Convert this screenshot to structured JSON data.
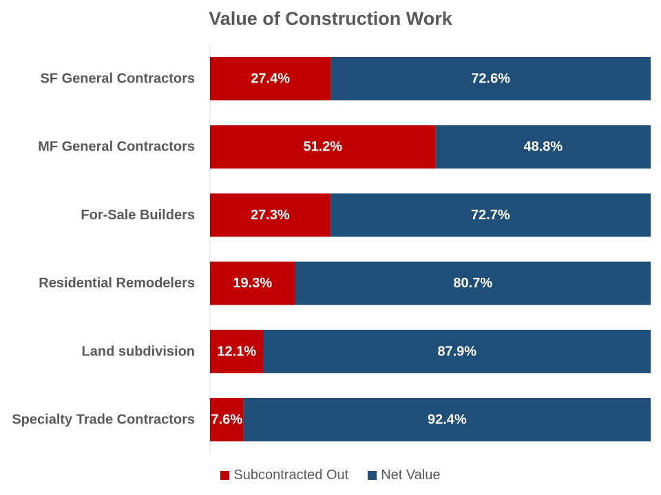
{
  "chart_data": {
    "type": "bar",
    "orientation": "horizontal",
    "stacked": true,
    "title": "Value of Construction Work",
    "categories": [
      "SF General Contractors",
      "MF General Contractors",
      "For-Sale Builders",
      "Residential Remodelers",
      "Land subdivision",
      "Specialty Trade Contractors"
    ],
    "series": [
      {
        "name": "Subcontracted Out",
        "color": "#C00000",
        "values": [
          27.4,
          51.2,
          27.3,
          19.3,
          12.1,
          7.6
        ],
        "labels": [
          "27.4%",
          "51.2%",
          "27.3%",
          "19.3%",
          "12.1%",
          "7.6%"
        ]
      },
      {
        "name": "Net Value",
        "color": "#1F4E79",
        "values": [
          72.6,
          48.8,
          72.7,
          80.7,
          87.9,
          92.4
        ],
        "labels": [
          "72.6%",
          "48.8%",
          "72.7%",
          "80.7%",
          "87.9%",
          "92.4%"
        ]
      }
    ],
    "xlim": [
      0,
      100
    ],
    "xlabel": "",
    "ylabel": "",
    "grid": false,
    "legend_position": "bottom"
  }
}
